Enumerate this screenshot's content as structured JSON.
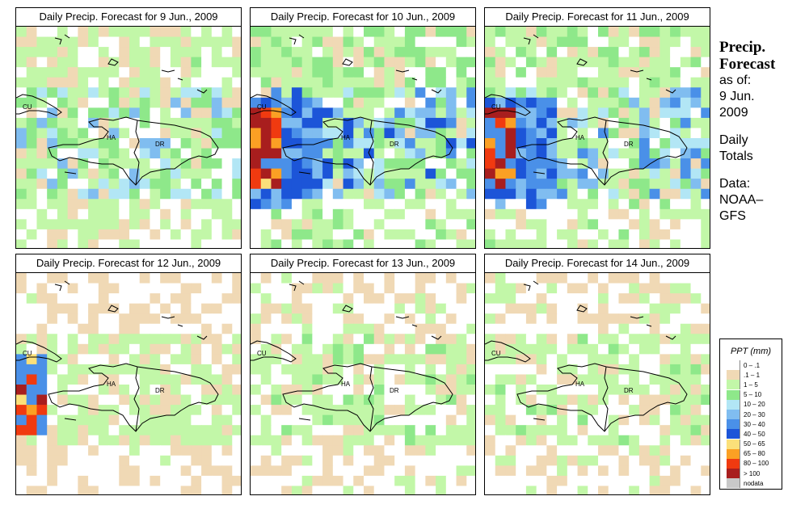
{
  "panels": [
    {
      "title": "Daily Precip. Forecast for  9 Jun., 2009",
      "seed": 11,
      "wet": 2.2,
      "storm": 0.0
    },
    {
      "title": "Daily Precip. Forecast for  10 Jun., 2009",
      "seed": 23,
      "wet": 3.0,
      "storm": 1.0
    },
    {
      "title": "Daily Precip. Forecast for  11 Jun., 2009",
      "seed": 37,
      "wet": 2.6,
      "storm": 0.85
    },
    {
      "title": "Daily Precip. Forecast for  12 Jun., 2009",
      "seed": 41,
      "wet": 1.1,
      "storm": 0.6
    },
    {
      "title": "Daily Precip. Forecast for  13 Jun., 2009",
      "seed": 53,
      "wet": 1.3,
      "storm": 0.0
    },
    {
      "title": "Daily Precip. Forecast for  14 Jun., 2009",
      "seed": 67,
      "wet": 1.3,
      "storm": 0.0
    }
  ],
  "map_labels": {
    "cuba": "CU",
    "haiti": "HA",
    "dominican_republic": "DR"
  },
  "side_text": {
    "line1": "Precip.",
    "line2": "Forecast",
    "line3": "as of:",
    "line4": "9 Jun.",
    "line5": "2009",
    "line6": "Daily",
    "line7": "Totals",
    "line8": "Data:",
    "line9": "NOAA–",
    "line10": "GFS"
  },
  "legend": {
    "title": "PPT (mm)",
    "items": [
      {
        "label": "0 – .1",
        "color": "#ffffff"
      },
      {
        "label": ".1 – 1",
        "color": "#f0d9b5"
      },
      {
        "label": "1 – 5",
        "color": "#c2f7a8"
      },
      {
        "label": "5 – 10",
        "color": "#8ee88a"
      },
      {
        "label": "10 – 20",
        "color": "#b2e6f5"
      },
      {
        "label": "20 – 30",
        "color": "#80bdf0"
      },
      {
        "label": "30 – 40",
        "color": "#4a90e8"
      },
      {
        "label": "40 – 50",
        "color": "#1c55d8"
      },
      {
        "label": "50 – 65",
        "color": "#fbe07a"
      },
      {
        "label": "65 – 80",
        "color": "#fba024"
      },
      {
        "label": "80 – 100",
        "color": "#f03a10"
      },
      {
        "label": "> 100",
        "color": "#a81e1e"
      },
      {
        "label": "nodata",
        "color": "#c8c8c8"
      }
    ]
  }
}
